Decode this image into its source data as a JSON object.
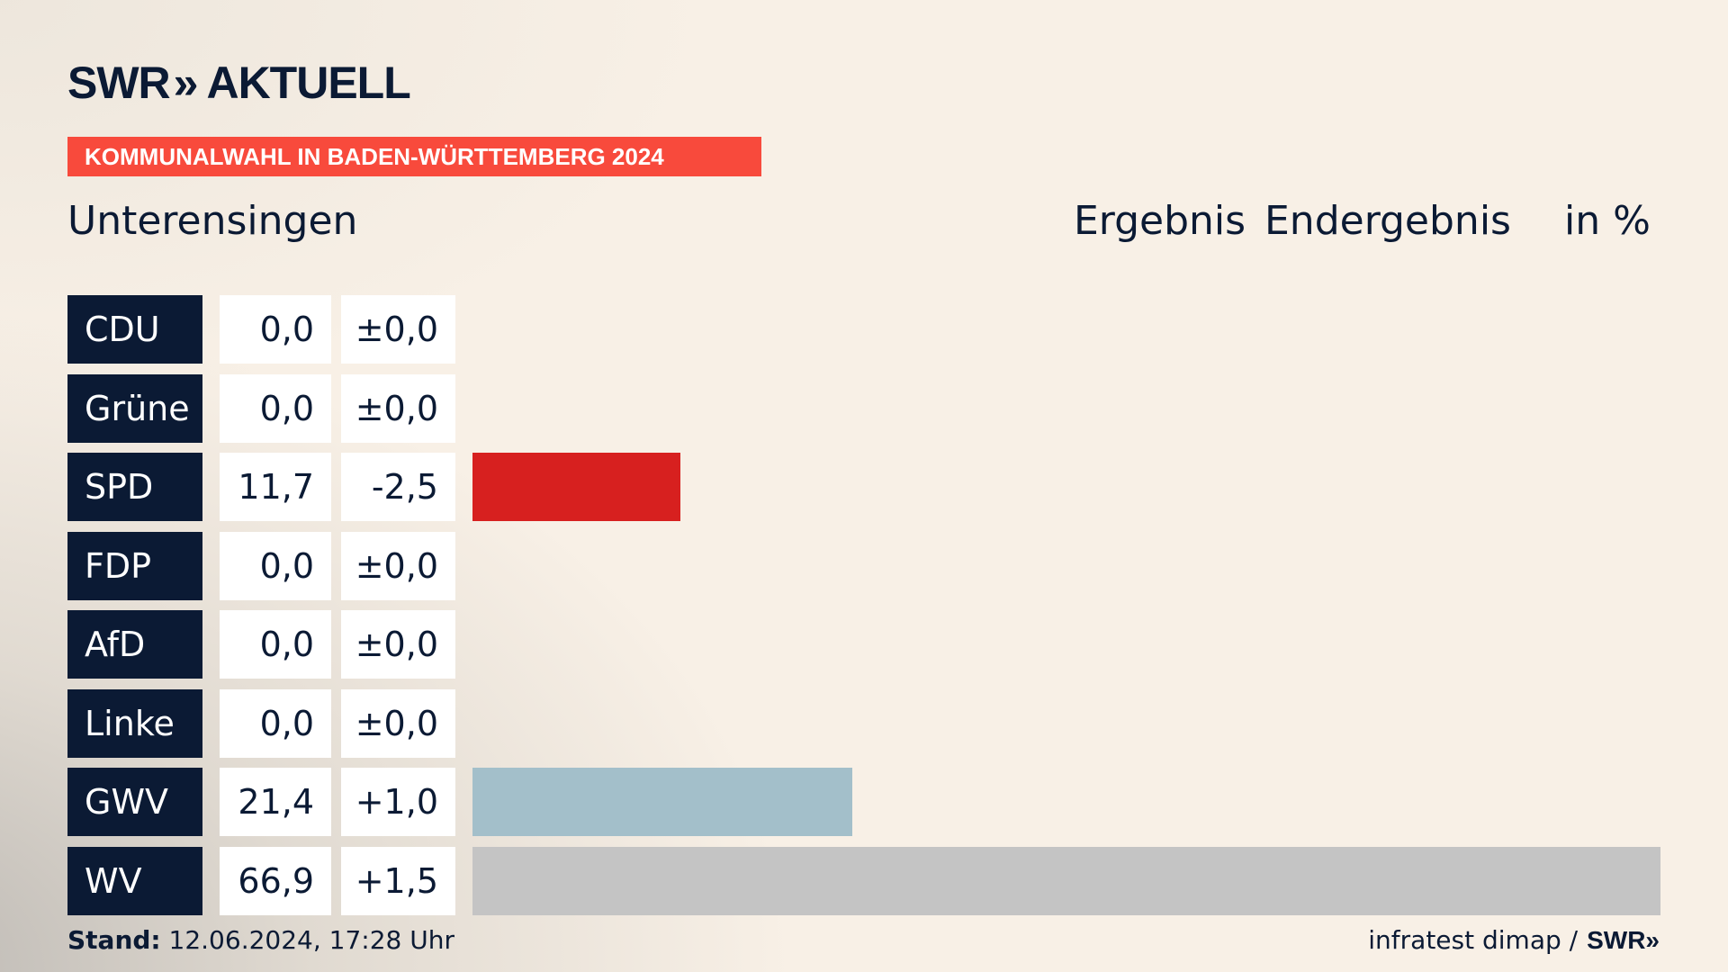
{
  "header": {
    "logo_text_left": "SWR",
    "logo_chevrons": "»",
    "logo_text_right": "AKTUELL",
    "banner": "KOMMUNALWAHL IN BADEN-WÜRTTEMBERG 2024",
    "place": "Unterensingen",
    "col_result": "Ergebnis",
    "col_status": "Endergebnis",
    "col_unit": "in %"
  },
  "chart_data": {
    "type": "bar",
    "categories": [
      "CDU",
      "Grüne",
      "SPD",
      "FDP",
      "AfD",
      "Linke",
      "GWV",
      "WV"
    ],
    "values": [
      "0,0",
      "0,0",
      "11,7",
      "0,0",
      "0,0",
      "0,0",
      "21,4",
      "66,9"
    ],
    "numeric_values": [
      0.0,
      0.0,
      11.7,
      0.0,
      0.0,
      0.0,
      21.4,
      66.9
    ],
    "changes": [
      "±0,0",
      "±0,0",
      "-2,5",
      "±0,0",
      "±0,0",
      "±0,0",
      "+1,0",
      "+1,5"
    ],
    "colors": [
      "#000000",
      "#46962b",
      "#d7201f",
      "#ffed00",
      "#009ee0",
      "#be3075",
      "#a3bfca",
      "#c4c4c4"
    ],
    "xlim": [
      0,
      66.9
    ],
    "unit": "%"
  },
  "footer": {
    "stand_label": "Stand:",
    "stand_value": "12.06.2024, 17:28 Uhr",
    "source": "infratest dimap /",
    "source_logo": "SWR»"
  }
}
